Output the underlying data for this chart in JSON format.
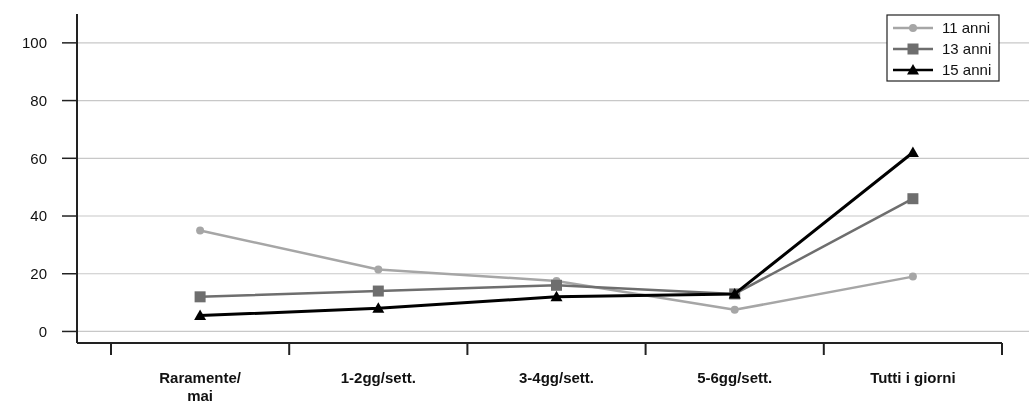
{
  "chart_data": {
    "type": "line",
    "categories": [
      "Raramente/\nmai",
      "1-2gg/sett.",
      "3-4gg/sett.",
      "5-6gg/sett.",
      "Tutti i giorni"
    ],
    "series": [
      {
        "name": "11 anni",
        "color": "#a6a6a6",
        "marker": "circle",
        "values": [
          35,
          21.5,
          17.5,
          7.5,
          19
        ]
      },
      {
        "name": "13 anni",
        "color": "#6e6e6e",
        "marker": "square",
        "values": [
          12,
          14,
          16,
          13,
          46
        ]
      },
      {
        "name": "15 anni",
        "color": "#000000",
        "marker": "triangle",
        "values": [
          5.5,
          8,
          12,
          13,
          62
        ]
      }
    ],
    "ylim": [
      -4,
      110
    ],
    "yticks": [
      0,
      20,
      40,
      60,
      80,
      100
    ],
    "grid": "y",
    "legend": "top right",
    "line_style": "solid"
  }
}
